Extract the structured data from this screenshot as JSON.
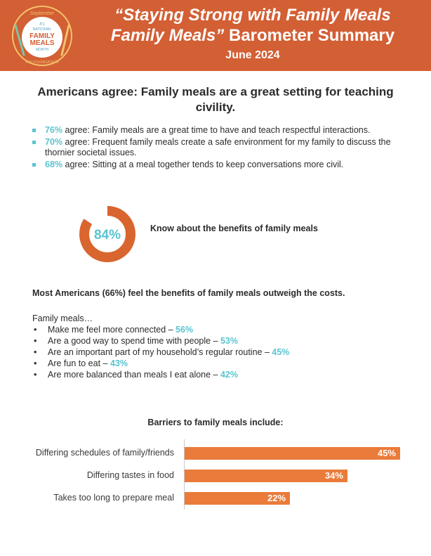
{
  "logo": {
    "top_text": "September",
    "its": "It's",
    "national": "NATIONAL",
    "family": "FAMILY",
    "meals": "MEALS",
    "month": "MONTH",
    "bottom_text": "FMI FOUNDATION"
  },
  "header": {
    "title_line1": "“Staying Strong with Family Meals",
    "title_line2_italic": "Family Meals”",
    "title_line2_rest": " Barometer Summary",
    "date": "June 2024"
  },
  "headline": "Americans agree: Family meals are a great setting for teaching civility.",
  "stats": [
    {
      "pct": "76%",
      "text": " agree: Family meals are a great time to have and teach respectful interactions."
    },
    {
      "pct": "70%",
      "text": " agree: Frequent family meals create a safe environment for my family to discuss the thornier societal issues."
    },
    {
      "pct": "68%",
      "text": " agree: Sitting at a meal together tends to keep conversations more civil."
    }
  ],
  "donut": {
    "value": "84%",
    "fraction": 0.84,
    "label": "Know about the benefits of family meals"
  },
  "benefits_heading": "Most Americans (66%) feel the benefits of family meals outweigh the costs.",
  "family_meals_intro": "Family meals…",
  "benefits": [
    {
      "text": "Make me feel more connected – ",
      "pct": "56%"
    },
    {
      "text": "Are a good way to spend time with people – ",
      "pct": "53%"
    },
    {
      "text": "Are an important part of my household’s regular routine – ",
      "pct": "45%"
    },
    {
      "text": "Are fun to eat – ",
      "pct": "43%"
    },
    {
      "text": "Are more balanced than meals I eat alone – ",
      "pct": "42%"
    }
  ],
  "chart_data": {
    "type": "bar",
    "orientation": "horizontal",
    "title": "Barriers to family meals include:",
    "categories": [
      "Differing schedules of family/friends",
      "Differing tastes in food",
      "Takes too long to prepare meal"
    ],
    "values": [
      45,
      34,
      22
    ],
    "value_labels": [
      "45%",
      "34%",
      "22%"
    ],
    "xlim": [
      0,
      45
    ]
  },
  "colors": {
    "banner": "#d35f34",
    "accent_teal": "#5bc4d0",
    "bar": "#ea7b3a",
    "donut": "#d9652f"
  }
}
